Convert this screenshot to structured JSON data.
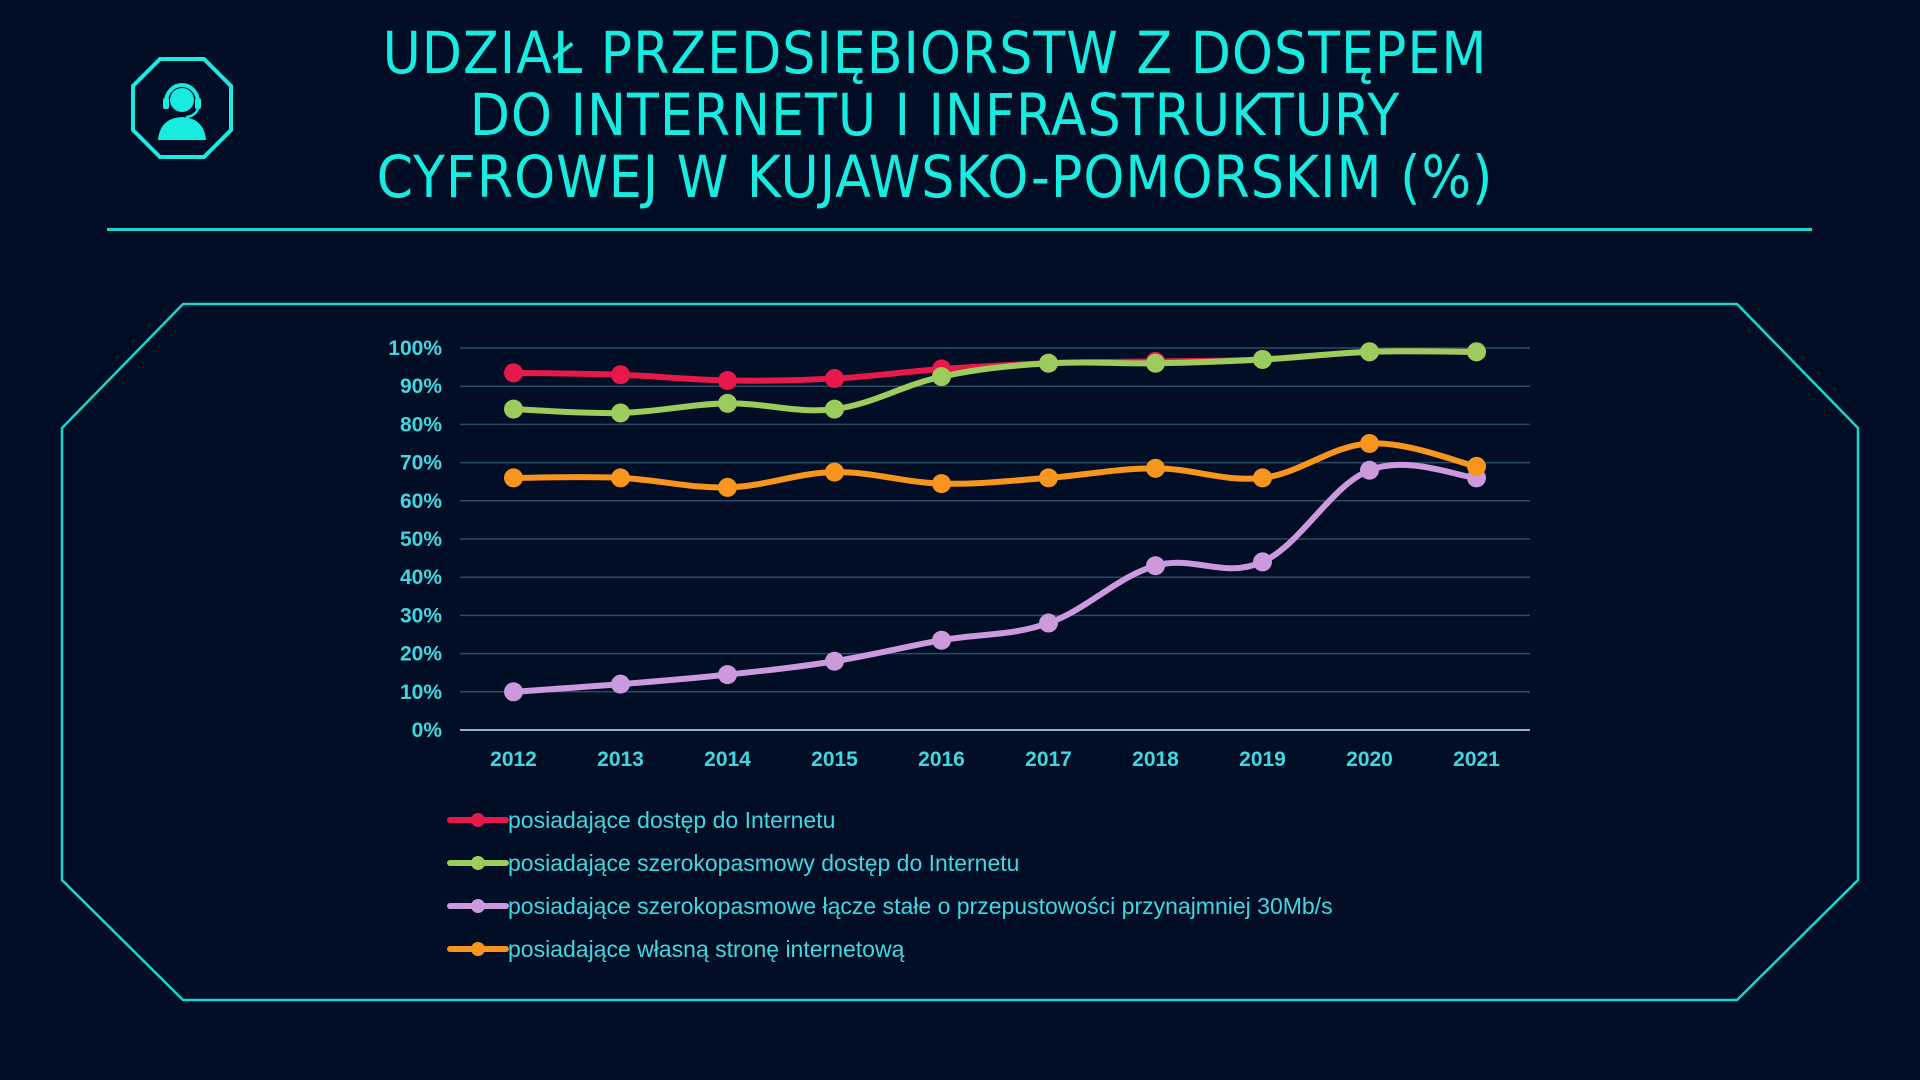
{
  "title": {
    "lines": [
      "UDZIAŁ PRZEDSIĘBIORSTW Z DOSTĘPEM",
      "DO INTERNETU I INFRASTRUKTURY",
      "CYFROWEJ W KUJAWSKO-POMORSKIM (%)"
    ]
  },
  "logo": {
    "icon": "headset-support-icon",
    "color": "#18ece0"
  },
  "colors": {
    "background": "#020e26",
    "accent": "#18ece0",
    "ticks": "#3fd8e0",
    "grid": "#2b4a63"
  },
  "chart_data": {
    "type": "line",
    "categories": [
      "2012",
      "2013",
      "2014",
      "2015",
      "2016",
      "2017",
      "2018",
      "2019",
      "2020",
      "2021"
    ],
    "ylim": [
      0,
      100
    ],
    "yticks": [
      0,
      10,
      20,
      30,
      40,
      50,
      60,
      70,
      80,
      90,
      100
    ],
    "ytick_labels": [
      "0%",
      "10%",
      "20%",
      "30%",
      "40%",
      "50%",
      "60%",
      "70%",
      "80%",
      "90%",
      "100%"
    ],
    "grid": true,
    "smooth": true,
    "legend_position": "bottom-left",
    "series": [
      {
        "name": "posiadające dostęp do Internetu",
        "color": "#e8194a",
        "values": [
          93.5,
          93,
          91.5,
          92,
          94.5,
          96,
          96.5,
          97,
          99,
          99
        ]
      },
      {
        "name": "posiadające szerokopasmowy dostęp do Internetu",
        "color": "#9ccc5c",
        "values": [
          84,
          83,
          85.5,
          84,
          92.5,
          96,
          96,
          97,
          99,
          99
        ]
      },
      {
        "name": "posiadające szerokopasmowe łącze stałe o przepustowości przynajmniej 30Mb/s",
        "color": "#cc99dd",
        "values": [
          10,
          12,
          14.5,
          18,
          23.5,
          28,
          43,
          44,
          68,
          66
        ]
      },
      {
        "name": "posiadające własną stronę internetową",
        "color": "#f8951d",
        "values": [
          66,
          66,
          63.5,
          67.5,
          64.5,
          66,
          68.5,
          66,
          75,
          69
        ]
      }
    ]
  }
}
